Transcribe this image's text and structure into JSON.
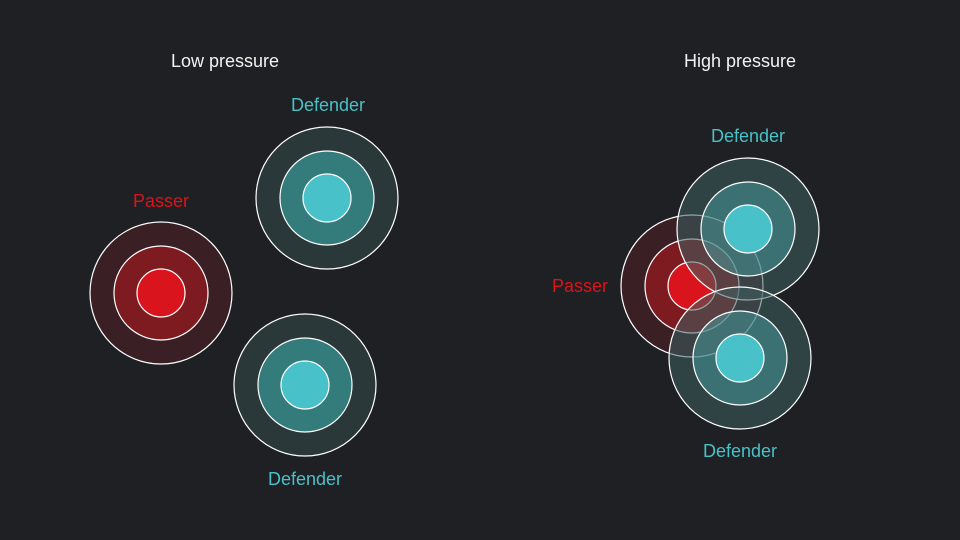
{
  "colors": {
    "background": "#1f2023",
    "title": "#f2f2f2",
    "passer": "#d9141c",
    "defender": "#48c1c8",
    "ring_stroke": "#ffffff"
  },
  "panels": {
    "low": {
      "title": "Low pressure",
      "passer": {
        "label": "Passer"
      },
      "defender_top": {
        "label": "Defender"
      },
      "defender_bottom": {
        "label": "Defender"
      }
    },
    "high": {
      "title": "High pressure",
      "passer": {
        "label": "Passer"
      },
      "defender_top": {
        "label": "Defender"
      },
      "defender_bottom": {
        "label": "Defender"
      }
    }
  }
}
